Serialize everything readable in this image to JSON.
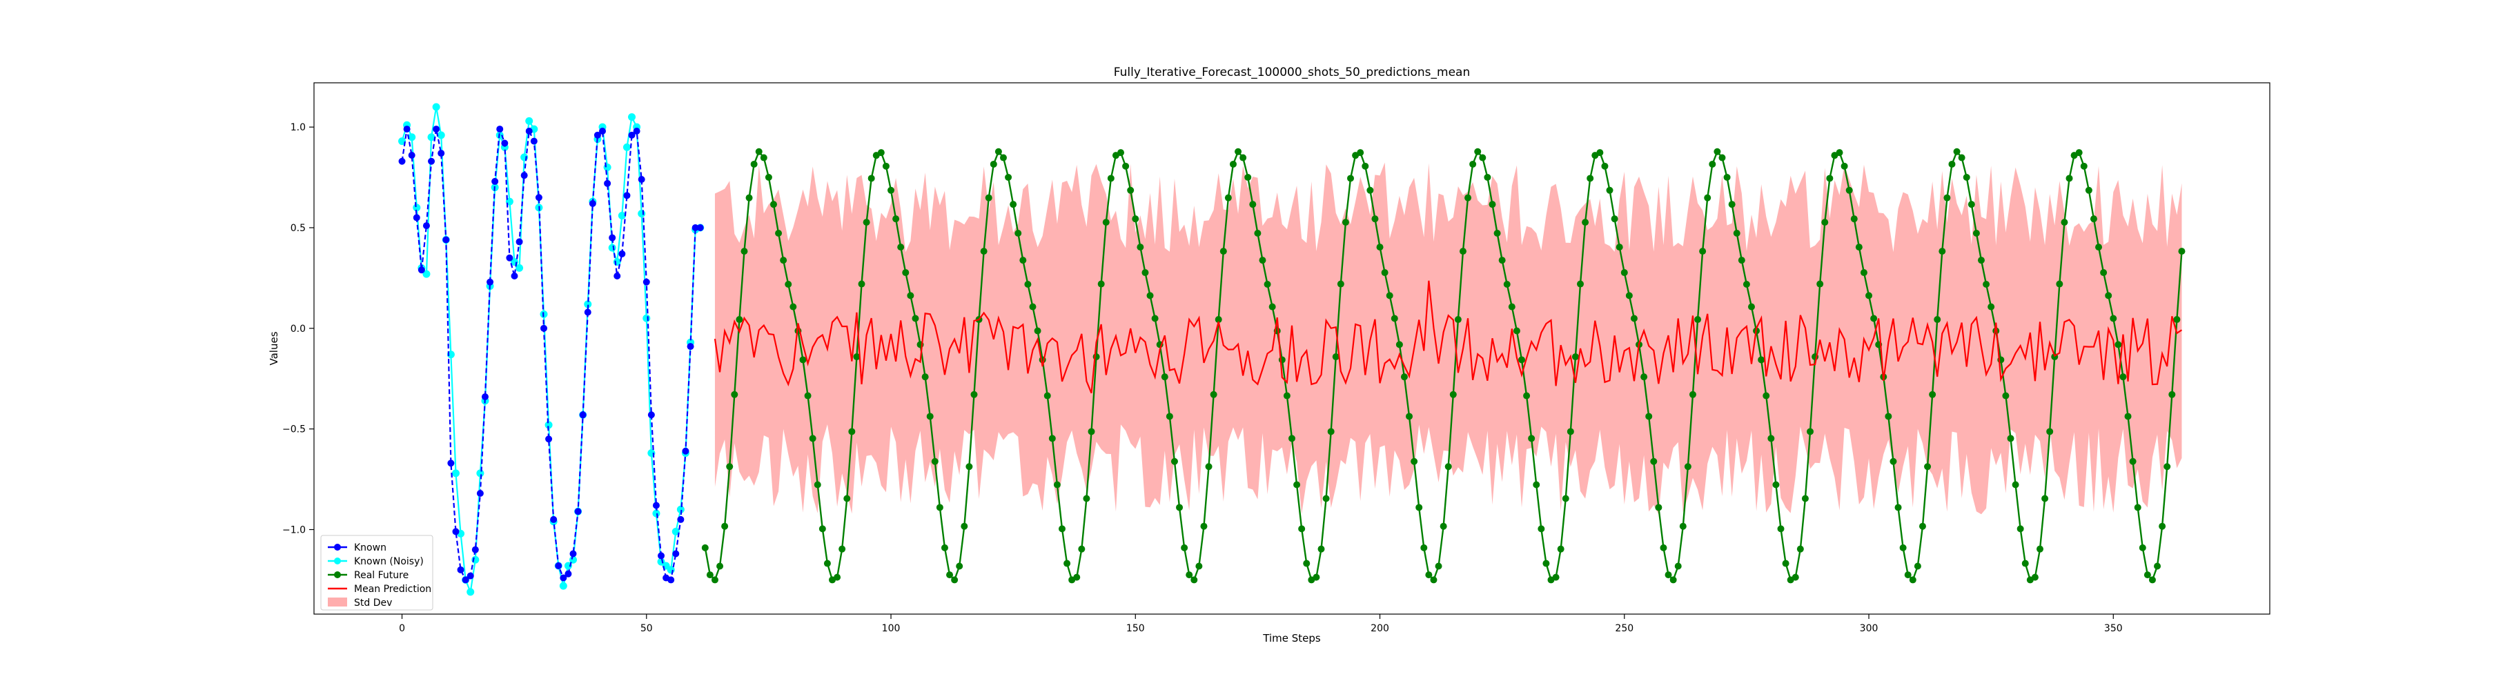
{
  "chart_data": {
    "type": "line",
    "title": "Fully_Iterative_Forecast_100000_shots_50_predictions_mean",
    "xlabel": "Time Steps",
    "ylabel": "Values",
    "xlim": [
      -18,
      382
    ],
    "ylim": [
      -1.42,
      1.22
    ],
    "xticks": [
      0,
      50,
      100,
      150,
      200,
      250,
      300,
      350
    ],
    "yticks": [
      -1.0,
      -0.5,
      0.0,
      0.5,
      1.0
    ],
    "xtick_labels": [
      "0",
      "50",
      "100",
      "150",
      "200",
      "250",
      "300",
      "350"
    ],
    "ytick_labels": [
      "−1.0",
      "−0.5",
      "0.0",
      "0.5",
      "1.0"
    ],
    "grid": false,
    "legend_position": "lower-left",
    "legend": [
      {
        "key": "known",
        "label": "Known"
      },
      {
        "key": "noisy",
        "label": "Known (Noisy)"
      },
      {
        "key": "real",
        "label": "Real Future"
      },
      {
        "key": "mean",
        "label": "Mean Prediction"
      },
      {
        "key": "std",
        "label": "Std Dev"
      }
    ],
    "colors": {
      "known": "#0000ff",
      "noisy": "#00ffff",
      "real": "#008000",
      "mean": "#ff0000",
      "std": "#ff9999"
    },
    "series": {
      "known": {
        "x_start": 0,
        "values": [
          0.83,
          0.99,
          0.86,
          0.55,
          0.29,
          0.51,
          0.83,
          0.99,
          0.87,
          0.44,
          -0.67,
          -1.01,
          -1.2,
          -1.25,
          -1.23,
          -1.1,
          -0.82,
          -0.34,
          0.23,
          0.73,
          0.99,
          0.92,
          0.35,
          0.26,
          0.43,
          0.76,
          0.98,
          0.93,
          0.65,
          0.0,
          -0.55,
          -0.95,
          -1.18,
          -1.24,
          -1.22,
          -1.12,
          -0.91,
          -0.43,
          0.08,
          0.62,
          0.96,
          0.98,
          0.72,
          0.45,
          0.26,
          0.37,
          0.66,
          0.96,
          0.98,
          0.74,
          0.23,
          -0.43,
          -0.88,
          -1.13,
          -1.24,
          -1.25,
          -1.12,
          -0.95,
          -0.61,
          -0.09,
          0.5,
          0.5
        ]
      },
      "known_noisy": {
        "x_start": 0,
        "values": [
          0.93,
          1.01,
          0.95,
          0.6,
          0.3,
          0.27,
          0.95,
          1.1,
          0.96,
          0.44,
          -0.13,
          -0.72,
          -1.02,
          -1.25,
          -1.31,
          -1.15,
          -0.72,
          -0.36,
          0.21,
          0.7,
          0.96,
          0.9,
          0.63,
          0.33,
          0.3,
          0.85,
          1.03,
          0.99,
          0.6,
          0.07,
          -0.48,
          -0.96,
          -1.18,
          -1.28,
          -1.18,
          -1.15,
          -0.91,
          -0.43,
          0.12,
          0.63,
          0.94,
          1.0,
          0.8,
          0.4,
          0.33,
          0.56,
          0.9,
          1.05,
          1.0,
          0.57,
          0.05,
          -0.62,
          -0.92,
          -1.16,
          -1.18,
          -1.2,
          -1.01,
          -0.9,
          -0.62,
          -0.07,
          0.49,
          0.5
        ]
      },
      "real_future": {
        "x_start": 62,
        "period": 24.5,
        "phase": 1.2,
        "amplitude": 1.25,
        "bump_amplitude": 0.6,
        "count": 303
      },
      "mean_prediction": {
        "x_start": 64,
        "mean_level": -0.1,
        "count": 301
      },
      "std_dev": {
        "x_start": 64,
        "typical_upper": 0.6,
        "typical_lower": -0.7,
        "count": 301
      }
    }
  }
}
